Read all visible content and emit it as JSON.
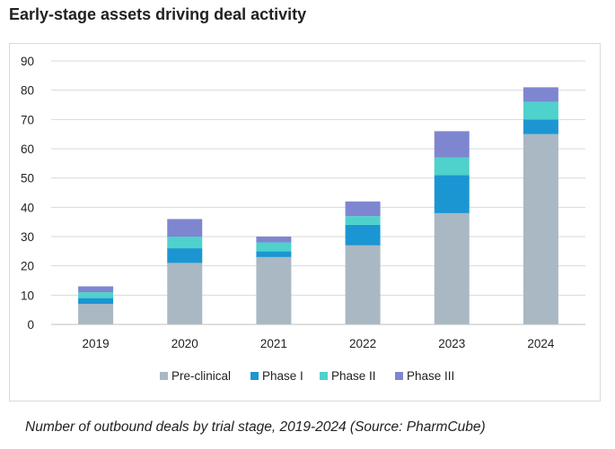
{
  "title": "Early-stage assets driving deal activity",
  "caption": "Number of outbound deals by trial stage, 2019-2024 (Source: PharmCube)",
  "chart_data": {
    "type": "bar",
    "stacked": true,
    "categories": [
      "2019",
      "2020",
      "2021",
      "2022",
      "2023",
      "2024"
    ],
    "series": [
      {
        "name": "Pre-clinical",
        "color": "#a9b8c3",
        "values": [
          7,
          21,
          23,
          27,
          38,
          65
        ]
      },
      {
        "name": "Phase I",
        "color": "#1b96d3",
        "values": [
          2,
          5,
          2,
          7,
          13,
          5
        ]
      },
      {
        "name": "Phase II",
        "color": "#4fd1cc",
        "values": [
          2,
          4,
          3,
          3,
          6,
          6
        ]
      },
      {
        "name": "Phase III",
        "color": "#7f86d0",
        "values": [
          2,
          6,
          2,
          5,
          9,
          5
        ]
      }
    ],
    "ylim": [
      0,
      90
    ],
    "yticks": [
      0,
      10,
      20,
      30,
      40,
      50,
      60,
      70,
      80,
      90
    ],
    "grid": true,
    "legend_position": "bottom"
  }
}
